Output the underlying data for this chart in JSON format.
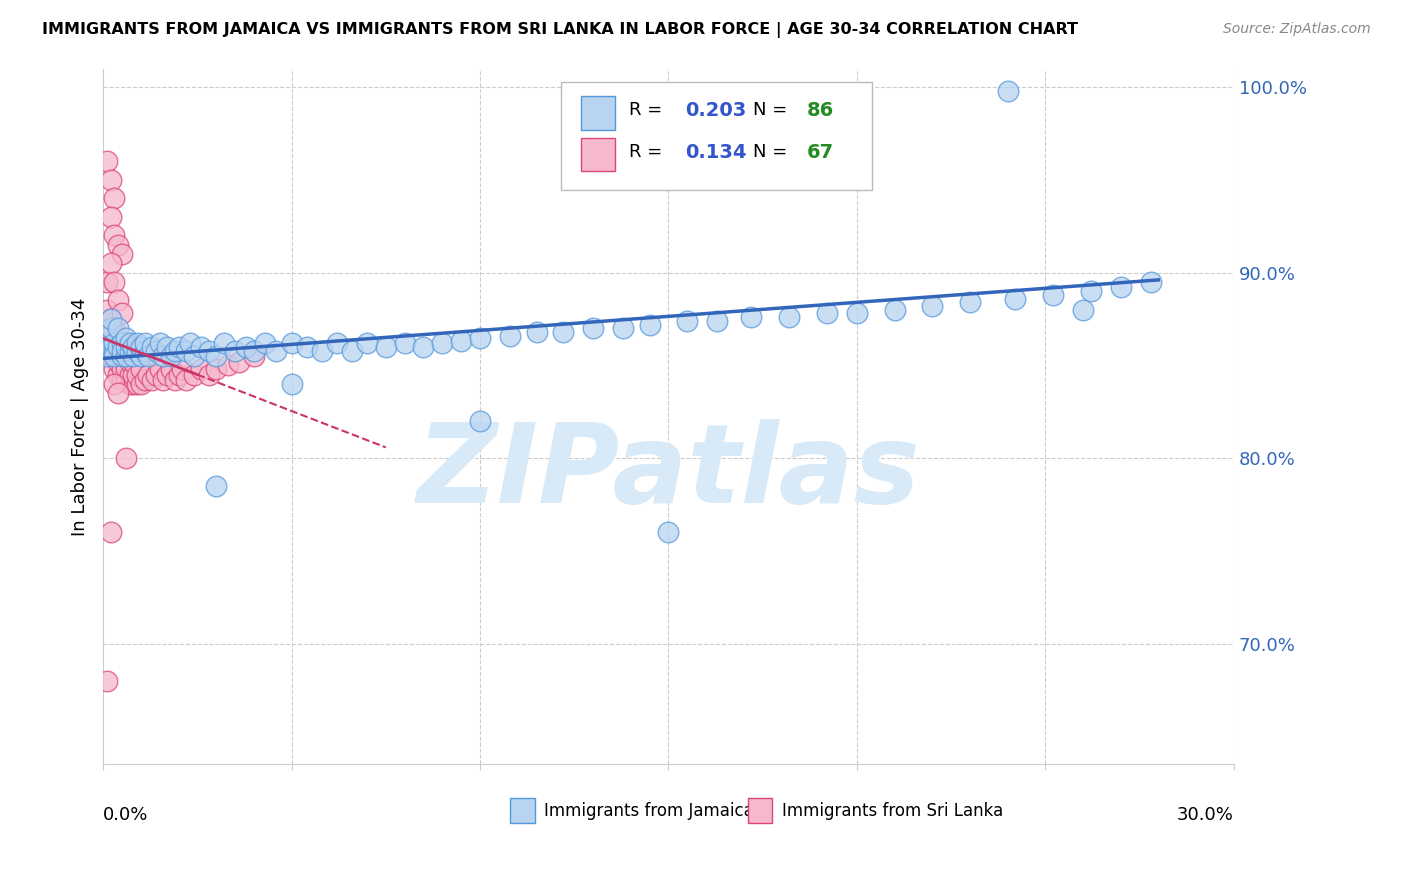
{
  "title": "IMMIGRANTS FROM JAMAICA VS IMMIGRANTS FROM SRI LANKA IN LABOR FORCE | AGE 30-34 CORRELATION CHART",
  "source": "Source: ZipAtlas.com",
  "xlabel_jamaica": "Immigrants from Jamaica",
  "xlabel_srilanka": "Immigrants from Sri Lanka",
  "ylabel": "In Labor Force | Age 30-34",
  "xlim": [
    0.0,
    0.3
  ],
  "ylim": [
    0.635,
    1.01
  ],
  "yticks_right": [
    1.0,
    0.9,
    0.8,
    0.7
  ],
  "ytick_labels_right": [
    "100.0%",
    "90.0%",
    "80.0%",
    "70.0%"
  ],
  "R_jamaica": 0.203,
  "N_jamaica": 86,
  "R_srilanka": 0.134,
  "N_srilanka": 67,
  "color_jamaica_face": "#b8d4f0",
  "color_jamaica_edge": "#5599dd",
  "color_srilanka_face": "#f5b8cc",
  "color_srilanka_edge": "#dd4477",
  "color_jamaica_line": "#3366bb",
  "color_srilanka_line": "#cc3366",
  "color_R_value": "#3355cc",
  "color_N_value": "#228B22",
  "watermark_color": "#d8eaf8",
  "grid_color": "#cccccc",
  "jamaica_x": [
    0.001,
    0.001,
    0.002,
    0.002,
    0.002,
    0.003,
    0.003,
    0.003,
    0.004,
    0.004,
    0.005,
    0.005,
    0.005,
    0.006,
    0.006,
    0.006,
    0.007,
    0.007,
    0.008,
    0.008,
    0.009,
    0.009,
    0.01,
    0.01,
    0.011,
    0.011,
    0.012,
    0.013,
    0.014,
    0.015,
    0.016,
    0.017,
    0.018,
    0.019,
    0.02,
    0.022,
    0.023,
    0.024,
    0.026,
    0.028,
    0.03,
    0.032,
    0.035,
    0.038,
    0.04,
    0.043,
    0.046,
    0.05,
    0.054,
    0.058,
    0.062,
    0.066,
    0.07,
    0.075,
    0.08,
    0.085,
    0.09,
    0.095,
    0.1,
    0.108,
    0.115,
    0.122,
    0.13,
    0.138,
    0.145,
    0.155,
    0.163,
    0.172,
    0.182,
    0.192,
    0.2,
    0.21,
    0.22,
    0.23,
    0.242,
    0.252,
    0.262,
    0.27,
    0.278,
    0.26,
    0.15,
    0.1,
    0.05,
    0.03,
    0.18,
    0.24
  ],
  "jamaica_y": [
    0.855,
    0.865,
    0.87,
    0.86,
    0.875,
    0.858,
    0.862,
    0.855,
    0.86,
    0.87,
    0.855,
    0.862,
    0.858,
    0.855,
    0.86,
    0.865,
    0.858,
    0.862,
    0.855,
    0.86,
    0.858,
    0.862,
    0.855,
    0.86,
    0.858,
    0.862,
    0.855,
    0.86,
    0.858,
    0.862,
    0.855,
    0.86,
    0.855,
    0.858,
    0.86,
    0.858,
    0.862,
    0.855,
    0.86,
    0.858,
    0.855,
    0.862,
    0.858,
    0.86,
    0.858,
    0.862,
    0.858,
    0.862,
    0.86,
    0.858,
    0.862,
    0.858,
    0.862,
    0.86,
    0.862,
    0.86,
    0.862,
    0.863,
    0.865,
    0.866,
    0.868,
    0.868,
    0.87,
    0.87,
    0.872,
    0.874,
    0.874,
    0.876,
    0.876,
    0.878,
    0.878,
    0.88,
    0.882,
    0.884,
    0.886,
    0.888,
    0.89,
    0.892,
    0.895,
    0.88,
    0.76,
    0.82,
    0.84,
    0.785,
    0.995,
    0.998
  ],
  "srilanka_x": [
    0.001,
    0.001,
    0.001,
    0.002,
    0.002,
    0.002,
    0.002,
    0.003,
    0.003,
    0.003,
    0.003,
    0.004,
    0.004,
    0.004,
    0.004,
    0.005,
    0.005,
    0.005,
    0.005,
    0.006,
    0.006,
    0.006,
    0.007,
    0.007,
    0.007,
    0.008,
    0.008,
    0.008,
    0.009,
    0.009,
    0.01,
    0.01,
    0.011,
    0.012,
    0.013,
    0.014,
    0.015,
    0.016,
    0.017,
    0.018,
    0.019,
    0.02,
    0.021,
    0.022,
    0.024,
    0.026,
    0.028,
    0.03,
    0.033,
    0.036,
    0.04,
    0.001,
    0.002,
    0.003,
    0.002,
    0.003,
    0.004,
    0.005,
    0.002,
    0.003,
    0.004,
    0.005,
    0.003,
    0.004,
    0.006,
    0.002,
    0.001
  ],
  "srilanka_y": [
    0.87,
    0.88,
    0.895,
    0.855,
    0.86,
    0.87,
    0.875,
    0.848,
    0.855,
    0.862,
    0.87,
    0.845,
    0.852,
    0.858,
    0.865,
    0.842,
    0.848,
    0.855,
    0.862,
    0.842,
    0.848,
    0.855,
    0.84,
    0.845,
    0.852,
    0.84,
    0.845,
    0.852,
    0.84,
    0.845,
    0.84,
    0.848,
    0.842,
    0.845,
    0.842,
    0.845,
    0.848,
    0.842,
    0.845,
    0.848,
    0.842,
    0.845,
    0.848,
    0.842,
    0.845,
    0.848,
    0.845,
    0.848,
    0.85,
    0.852,
    0.855,
    0.96,
    0.95,
    0.94,
    0.93,
    0.92,
    0.915,
    0.91,
    0.905,
    0.895,
    0.885,
    0.878,
    0.84,
    0.835,
    0.8,
    0.76,
    0.68
  ]
}
